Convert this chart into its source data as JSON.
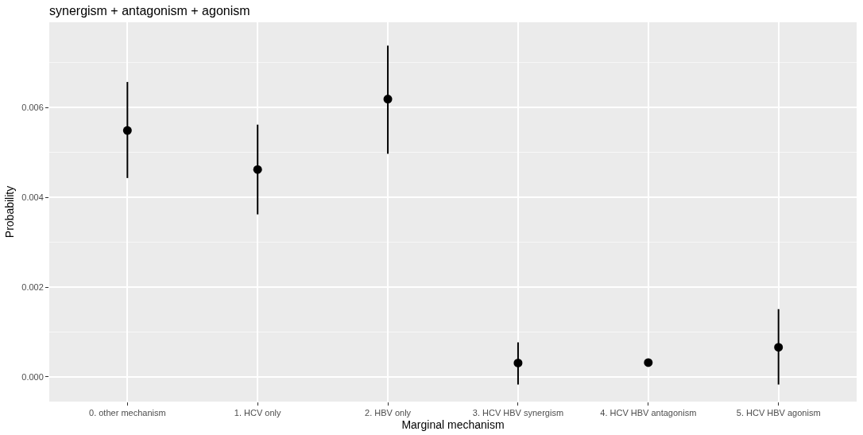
{
  "chart_data": {
    "type": "scatter",
    "title": "synergism + antagonism + agonism",
    "xlabel": "Marginal mechanism",
    "ylabel": "Probability",
    "categories": [
      "0. other mechanism",
      "1. HCV only",
      "2. HBV only",
      "3. HCV HBV synergism",
      "4. HCV HBV antagonism",
      "5. HCV HBV agonism"
    ],
    "values": [
      0.00549,
      0.00462,
      0.00619,
      0.00031,
      0.00032,
      0.00066
    ],
    "errors": [
      [
        0.00443,
        0.00657
      ],
      [
        0.00362,
        0.00562
      ],
      [
        0.00497,
        0.00738
      ],
      [
        -0.00017,
        0.00077
      ],
      null,
      [
        -0.00017,
        0.00151
      ]
    ],
    "color": "#000000",
    "marker": "circle",
    "grid": true,
    "ylim": [
      -0.00055,
      0.0079
    ],
    "yticks": [
      {
        "value": 0,
        "label": "0.000"
      },
      {
        "value": 0.002,
        "label": "0.002"
      },
      {
        "value": 0.004,
        "label": "0.004"
      },
      {
        "value": 0.006,
        "label": "0.006"
      }
    ]
  }
}
